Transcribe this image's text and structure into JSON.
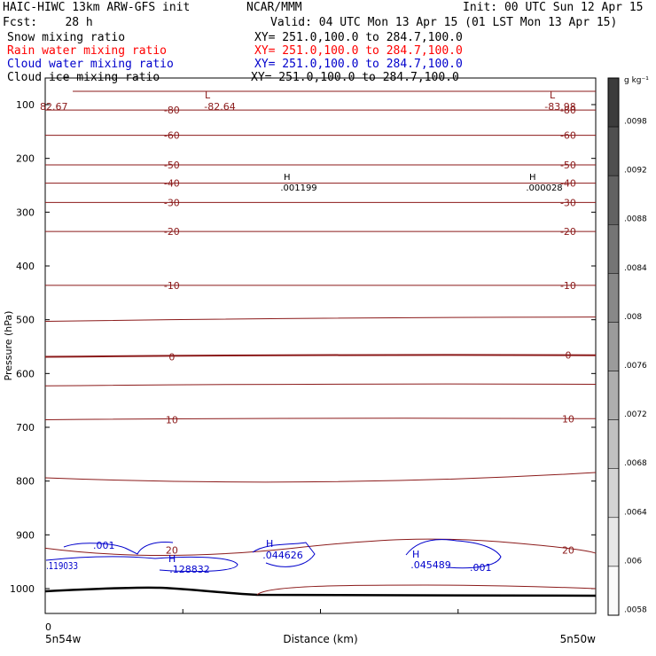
{
  "header": {
    "title": "HAIC-HIWC 13km ARW-GFS init",
    "org": "NCAR/MMM",
    "init": "Init: 00 UTC Sun 12 Apr 15",
    "fcst": "Fcst:    28 h",
    "valid": "Valid: 04 UTC Mon 13 Apr 15 (01 LST Mon 13 Apr 15)",
    "fields": [
      {
        "name": "Snow mixing ratio",
        "xy": "XY= 251.0,100.0 to 284.7,100.0",
        "color": "#000000"
      },
      {
        "name": "Rain water mixing ratio",
        "xy": "XY= 251.0,100.0 to 284.7,100.0",
        "color": "#ff0000"
      },
      {
        "name": "Cloud water mixing ratio",
        "xy": "XY= 251.0,100.0 to 284.7,100.0",
        "color": "#0000cc"
      },
      {
        "name": "Cloud ice mixing ratio",
        "xy": "XY= 251.0,100.0 to 284.7,100.0",
        "color": "#000000"
      }
    ]
  },
  "chart_data": {
    "type": "contour cross-section",
    "ylabel": "Pressure (hPa)",
    "xlabel": "Distance (km)",
    "x_origin_label": "0",
    "x_left_label": "5n54w",
    "x_right_label": "5n50w",
    "y_ticks": [
      100,
      200,
      300,
      400,
      500,
      600,
      700,
      800,
      900,
      1000
    ],
    "y_range": [
      1050,
      75
    ],
    "x_range": [
      0,
      1
    ],
    "temperature_contours": [
      {
        "level": "-80",
        "p_left": 110,
        "p_right": 110
      },
      {
        "level": "-60",
        "p_left": 157,
        "p_right": 157
      },
      {
        "level": "-50",
        "p_left": 212,
        "p_right": 212
      },
      {
        "level": "-40",
        "p_left": 246,
        "p_right": 246
      },
      {
        "level": "-30",
        "p_left": 282,
        "p_right": 282
      },
      {
        "level": "-20",
        "p_left": 336,
        "p_right": 336
      },
      {
        "level": "-10",
        "p_left": 436,
        "p_right": 436
      },
      {
        "level": "",
        "p_left": 503,
        "p_right": 495
      },
      {
        "level": "0",
        "p_left": 569,
        "p_right": 566
      },
      {
        "level": "",
        "p_left": 623,
        "p_right": 620
      },
      {
        "level": "10",
        "p_left": 686,
        "p_right": 684
      },
      {
        "level": "",
        "p_left": 794,
        "p_right": 794
      },
      {
        "level": "20",
        "p_left": 928,
        "p_right": 928
      }
    ],
    "extrema_labels": [
      {
        "type": "L",
        "value": "-82.64"
      },
      {
        "type": "L",
        "value": "-83.98"
      },
      {
        "type": "H",
        "value": ".001199"
      },
      {
        "type": "H",
        "value": ".000028"
      },
      {
        "type": "edge",
        "value": "82.67"
      },
      {
        "type": "H",
        "value": ".128832"
      },
      {
        "type": "H",
        "value": ".044626"
      },
      {
        "type": "H",
        "value": ".045489"
      },
      {
        "type": "edge",
        "value": ".119033"
      }
    ],
    "cloud_water_labels": [
      ".001",
      ".001"
    ],
    "colorbar": {
      "unit": "g kg⁻¹",
      "ticks": [
        ".0098",
        ".0092",
        ".0088",
        ".0084",
        ".008",
        ".0076",
        ".0072",
        ".0068",
        ".0064",
        ".006",
        ".0058"
      ]
    }
  },
  "colors": {
    "contour": "#8b1a1a",
    "cloud": "#0000cc",
    "terrain": "#000000"
  }
}
